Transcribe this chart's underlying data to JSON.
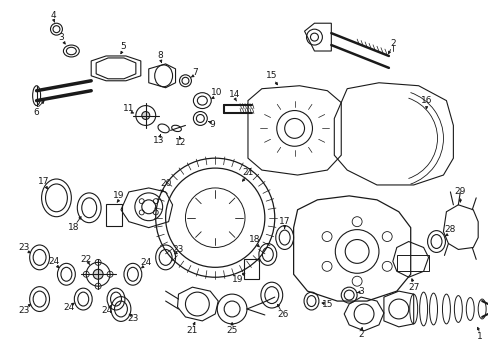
{
  "background_color": "#ffffff",
  "fig_width": 4.9,
  "fig_height": 3.6,
  "dpi": 100,
  "line_color": "#1a1a1a",
  "label_fontsize": 6.5
}
